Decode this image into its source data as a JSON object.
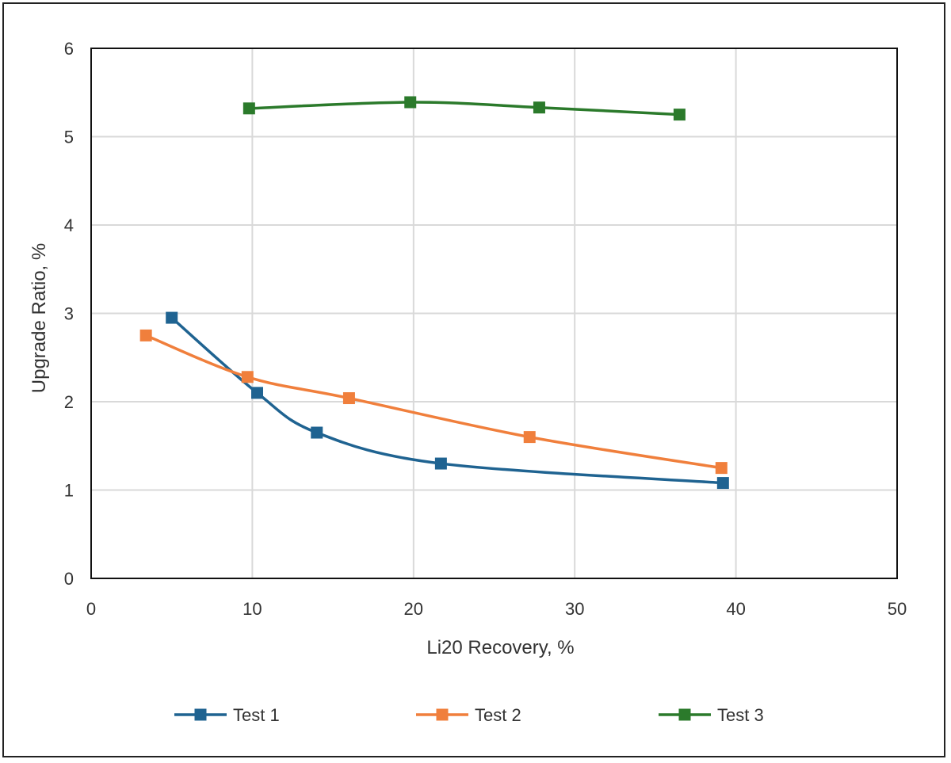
{
  "chart_data": {
    "type": "line",
    "title": "",
    "xlabel": "Li20 Recovery, %",
    "ylabel": "Upgrade Ratio, %",
    "xlim": [
      0,
      50
    ],
    "ylim": [
      0,
      6
    ],
    "x_ticks": [
      "0",
      "10",
      "20",
      "30",
      "40",
      "50"
    ],
    "y_ticks": [
      "0",
      "1",
      "2",
      "3",
      "4",
      "5",
      "6"
    ],
    "grid": true,
    "smooth_lines": true,
    "marker": "square",
    "legend_position": "bottom",
    "series": [
      {
        "name": "Test 1",
        "color": "#1f6391",
        "points": [
          {
            "x": 5.0,
            "y": 2.95
          },
          {
            "x": 10.3,
            "y": 2.1
          },
          {
            "x": 14.0,
            "y": 1.65
          },
          {
            "x": 21.7,
            "y": 1.3
          },
          {
            "x": 39.2,
            "y": 1.08
          }
        ]
      },
      {
        "name": "Test 2",
        "color": "#f07f3c",
        "points": [
          {
            "x": 3.4,
            "y": 2.75
          },
          {
            "x": 9.7,
            "y": 2.28
          },
          {
            "x": 16.0,
            "y": 2.04
          },
          {
            "x": 27.2,
            "y": 1.6
          },
          {
            "x": 39.1,
            "y": 1.25
          }
        ]
      },
      {
        "name": "Test 3",
        "color": "#2b7a2b",
        "points": [
          {
            "x": 9.8,
            "y": 5.32
          },
          {
            "x": 19.8,
            "y": 5.39
          },
          {
            "x": 27.8,
            "y": 5.33
          },
          {
            "x": 36.5,
            "y": 5.25
          }
        ]
      }
    ]
  }
}
